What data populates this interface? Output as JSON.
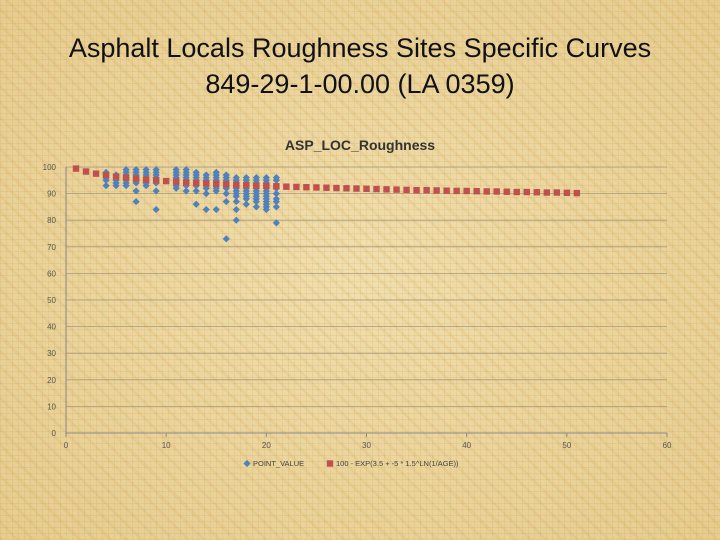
{
  "slide": {
    "title_line1": "Asphalt Locals Roughness Sites Specific Curves",
    "title_line2": "849-29-1-00.00 (LA 0359)"
  },
  "chart_data": {
    "type": "scatter",
    "title": "ASP_LOC_Roughness",
    "xlabel": "",
    "ylabel": "",
    "xlim": [
      0,
      60
    ],
    "ylim": [
      0,
      100
    ],
    "x_ticks": [
      0,
      10,
      20,
      30,
      40,
      50,
      60
    ],
    "y_ticks": [
      0,
      10,
      20,
      30,
      40,
      50,
      60,
      70,
      80,
      90,
      100
    ],
    "grid": "horizontal",
    "legend_position": "bottom",
    "series": [
      {
        "name": "POINT_VALUE",
        "color": "#4f81bd",
        "marker": "diamond",
        "points": [
          [
            4,
            93
          ],
          [
            4,
            95
          ],
          [
            4,
            96
          ],
          [
            4,
            97
          ],
          [
            4,
            98
          ],
          [
            5,
            93
          ],
          [
            5,
            94
          ],
          [
            5,
            95
          ],
          [
            5,
            96
          ],
          [
            5,
            97
          ],
          [
            6,
            93
          ],
          [
            6,
            94
          ],
          [
            6,
            95
          ],
          [
            6,
            96
          ],
          [
            6,
            97
          ],
          [
            6,
            98
          ],
          [
            6,
            99
          ],
          [
            7,
            87
          ],
          [
            7,
            91
          ],
          [
            7,
            94
          ],
          [
            7,
            95
          ],
          [
            7,
            96
          ],
          [
            7,
            97
          ],
          [
            7,
            98
          ],
          [
            7,
            99
          ],
          [
            8,
            93
          ],
          [
            8,
            94
          ],
          [
            8,
            95
          ],
          [
            8,
            96
          ],
          [
            8,
            97
          ],
          [
            8,
            98
          ],
          [
            8,
            99
          ],
          [
            9,
            84
          ],
          [
            9,
            91
          ],
          [
            9,
            94
          ],
          [
            9,
            95
          ],
          [
            9,
            96
          ],
          [
            9,
            97
          ],
          [
            9,
            98
          ],
          [
            9,
            99
          ],
          [
            11,
            92
          ],
          [
            11,
            93
          ],
          [
            11,
            94
          ],
          [
            11,
            95
          ],
          [
            11,
            96
          ],
          [
            11,
            97
          ],
          [
            11,
            98
          ],
          [
            11,
            99
          ],
          [
            12,
            91
          ],
          [
            12,
            93
          ],
          [
            12,
            94
          ],
          [
            12,
            95
          ],
          [
            12,
            96
          ],
          [
            12,
            97
          ],
          [
            12,
            98
          ],
          [
            12,
            99
          ],
          [
            13,
            86
          ],
          [
            13,
            91
          ],
          [
            13,
            93
          ],
          [
            13,
            94
          ],
          [
            13,
            95
          ],
          [
            13,
            96
          ],
          [
            13,
            97
          ],
          [
            13,
            98
          ],
          [
            14,
            84
          ],
          [
            14,
            90
          ],
          [
            14,
            92
          ],
          [
            14,
            93
          ],
          [
            14,
            94
          ],
          [
            14,
            95
          ],
          [
            14,
            96
          ],
          [
            14,
            97
          ],
          [
            15,
            84
          ],
          [
            15,
            91
          ],
          [
            15,
            92
          ],
          [
            15,
            93
          ],
          [
            15,
            94
          ],
          [
            15,
            95
          ],
          [
            15,
            96
          ],
          [
            15,
            97
          ],
          [
            15,
            98
          ],
          [
            16,
            73
          ],
          [
            16,
            87
          ],
          [
            16,
            90
          ],
          [
            16,
            92
          ],
          [
            16,
            93
          ],
          [
            16,
            94
          ],
          [
            16,
            95
          ],
          [
            16,
            96
          ],
          [
            16,
            97
          ],
          [
            17,
            80
          ],
          [
            17,
            84
          ],
          [
            17,
            87
          ],
          [
            17,
            89
          ],
          [
            17,
            90
          ],
          [
            17,
            91
          ],
          [
            17,
            92
          ],
          [
            17,
            93
          ],
          [
            17,
            94
          ],
          [
            17,
            95
          ],
          [
            17,
            96
          ],
          [
            18,
            86
          ],
          [
            18,
            88
          ],
          [
            18,
            89
          ],
          [
            18,
            90
          ],
          [
            18,
            91
          ],
          [
            18,
            92
          ],
          [
            18,
            93
          ],
          [
            18,
            94
          ],
          [
            18,
            95
          ],
          [
            18,
            96
          ],
          [
            19,
            85
          ],
          [
            19,
            87
          ],
          [
            19,
            88
          ],
          [
            19,
            89
          ],
          [
            19,
            90
          ],
          [
            19,
            91
          ],
          [
            19,
            92
          ],
          [
            19,
            93
          ],
          [
            19,
            94
          ],
          [
            19,
            95
          ],
          [
            19,
            96
          ],
          [
            20,
            84
          ],
          [
            20,
            85
          ],
          [
            20,
            86
          ],
          [
            20,
            87
          ],
          [
            20,
            88
          ],
          [
            20,
            89
          ],
          [
            20,
            90
          ],
          [
            20,
            91
          ],
          [
            20,
            92
          ],
          [
            20,
            93
          ],
          [
            20,
            94
          ],
          [
            20,
            95
          ],
          [
            20,
            96
          ],
          [
            21,
            79
          ],
          [
            21,
            85
          ],
          [
            21,
            87
          ],
          [
            21,
            88
          ],
          [
            21,
            90
          ],
          [
            21,
            92
          ],
          [
            21,
            93
          ],
          [
            21,
            95
          ],
          [
            21,
            96
          ]
        ]
      },
      {
        "name": "100 - EXP(3.5 + -5 * 1.5^LN(1/AGE))",
        "color": "#c0504d",
        "marker": "square",
        "points": [
          [
            1,
            99.4
          ],
          [
            2,
            98.3
          ],
          [
            3,
            97.5
          ],
          [
            4,
            96.9
          ],
          [
            5,
            96.4
          ],
          [
            6,
            96.0
          ],
          [
            7,
            95.6
          ],
          [
            8,
            95.3
          ],
          [
            9,
            95.0
          ],
          [
            10,
            94.7
          ],
          [
            11,
            94.5
          ],
          [
            12,
            94.2
          ],
          [
            13,
            94.0
          ],
          [
            14,
            93.8
          ],
          [
            15,
            93.7
          ],
          [
            16,
            93.5
          ],
          [
            17,
            93.3
          ],
          [
            18,
            93.2
          ],
          [
            19,
            93.0
          ],
          [
            20,
            92.9
          ],
          [
            21,
            92.8
          ],
          [
            22,
            92.6
          ],
          [
            23,
            92.5
          ],
          [
            24,
            92.4
          ],
          [
            25,
            92.3
          ],
          [
            26,
            92.2
          ],
          [
            27,
            92.1
          ],
          [
            28,
            92.0
          ],
          [
            29,
            91.9
          ],
          [
            30,
            91.8
          ],
          [
            31,
            91.7
          ],
          [
            32,
            91.6
          ],
          [
            33,
            91.5
          ],
          [
            34,
            91.4
          ],
          [
            35,
            91.3
          ],
          [
            36,
            91.3
          ],
          [
            37,
            91.2
          ],
          [
            38,
            91.1
          ],
          [
            39,
            91.0
          ],
          [
            40,
            91.0
          ],
          [
            41,
            90.9
          ],
          [
            42,
            90.8
          ],
          [
            43,
            90.8
          ],
          [
            44,
            90.7
          ],
          [
            45,
            90.6
          ],
          [
            46,
            90.6
          ],
          [
            47,
            90.5
          ],
          [
            48,
            90.4
          ],
          [
            49,
            90.4
          ],
          [
            50,
            90.3
          ],
          [
            51,
            90.2
          ]
        ]
      }
    ]
  }
}
